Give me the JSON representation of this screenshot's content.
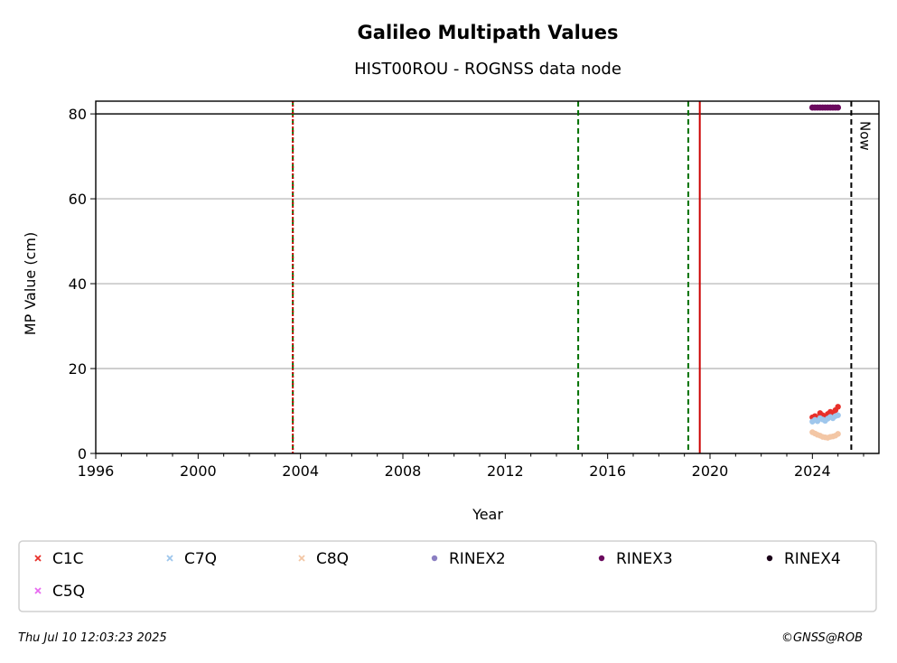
{
  "chart_data": {
    "type": "scatter",
    "title": "Galileo Multipath Values",
    "subtitle": "HIST00ROU - ROGNSS data node",
    "xlabel": "Year",
    "ylabel": "MP Value (cm)",
    "xlim": [
      1996,
      2026.6
    ],
    "ylim": [
      0,
      83
    ],
    "x_ticks": [
      "1996",
      "2000",
      "2004",
      "2008",
      "2012",
      "2016",
      "2020",
      "2024"
    ],
    "y_ticks": [
      "0",
      "20",
      "40",
      "60",
      "80"
    ],
    "grid": "horizontal",
    "reference_line_y": 80,
    "vlines": [
      {
        "x": 2003.7,
        "color": "#007000",
        "style": "dashed"
      },
      {
        "x": 2003.7,
        "color": "#cc0000",
        "style": "dotted"
      },
      {
        "x": 2014.85,
        "color": "#007000",
        "style": "dashed"
      },
      {
        "x": 2019.15,
        "color": "#007000",
        "style": "dashed"
      },
      {
        "x": 2019.6,
        "color": "#cc0000",
        "style": "solid"
      },
      {
        "x": 2025.52,
        "color": "#000000",
        "style": "dashed",
        "label": "Now"
      }
    ],
    "series": [
      {
        "name": "C1C",
        "color": "#e8302a",
        "marker": "x",
        "x": [
          2024.0,
          2024.1,
          2024.2,
          2024.3,
          2024.4,
          2024.5,
          2024.6,
          2024.7,
          2024.8,
          2024.9,
          2025.0
        ],
        "values": [
          8.5,
          8.8,
          8.2,
          9.5,
          9.0,
          8.7,
          9.3,
          9.8,
          9.5,
          10.2,
          11.0
        ]
      },
      {
        "name": "C7Q",
        "color": "#9ec6ec",
        "marker": "x",
        "x": [
          2024.0,
          2024.1,
          2024.2,
          2024.3,
          2024.4,
          2024.5,
          2024.6,
          2024.7,
          2024.8,
          2024.9,
          2025.0
        ],
        "values": [
          7.5,
          7.9,
          7.6,
          8.3,
          8.0,
          7.7,
          8.2,
          8.6,
          8.3,
          8.8,
          9.0
        ]
      },
      {
        "name": "C8Q",
        "color": "#f3c6a5",
        "marker": "x",
        "x": [
          2024.0,
          2024.1,
          2024.2,
          2024.3,
          2024.4,
          2024.5,
          2024.6,
          2024.7,
          2024.8,
          2024.9,
          2025.0
        ],
        "values": [
          5.0,
          4.7,
          4.4,
          4.2,
          3.9,
          3.8,
          3.7,
          3.9,
          4.0,
          4.2,
          4.6
        ]
      },
      {
        "name": "RINEX2",
        "color": "#8b7fc2",
        "marker": "dot",
        "x": [],
        "values": []
      },
      {
        "name": "RINEX3",
        "color": "#6b0a5e",
        "marker": "dot",
        "x": [
          2024.0,
          2024.1,
          2024.2,
          2024.3,
          2024.4,
          2024.5,
          2024.6,
          2024.7,
          2024.8,
          2024.9,
          2025.0
        ],
        "values": [
          81.5,
          81.5,
          81.5,
          81.5,
          81.5,
          81.5,
          81.5,
          81.5,
          81.5,
          81.5,
          81.5
        ]
      },
      {
        "name": "RINEX4",
        "color": "#1a0018",
        "marker": "dot",
        "x": [],
        "values": []
      },
      {
        "name": "C5Q",
        "color": "#e86bf0",
        "marker": "x",
        "x": [],
        "values": []
      }
    ]
  },
  "footer": {
    "timestamp": "Thu Jul 10 12:03:23 2025",
    "copyright": "©GNSS@ROB"
  }
}
